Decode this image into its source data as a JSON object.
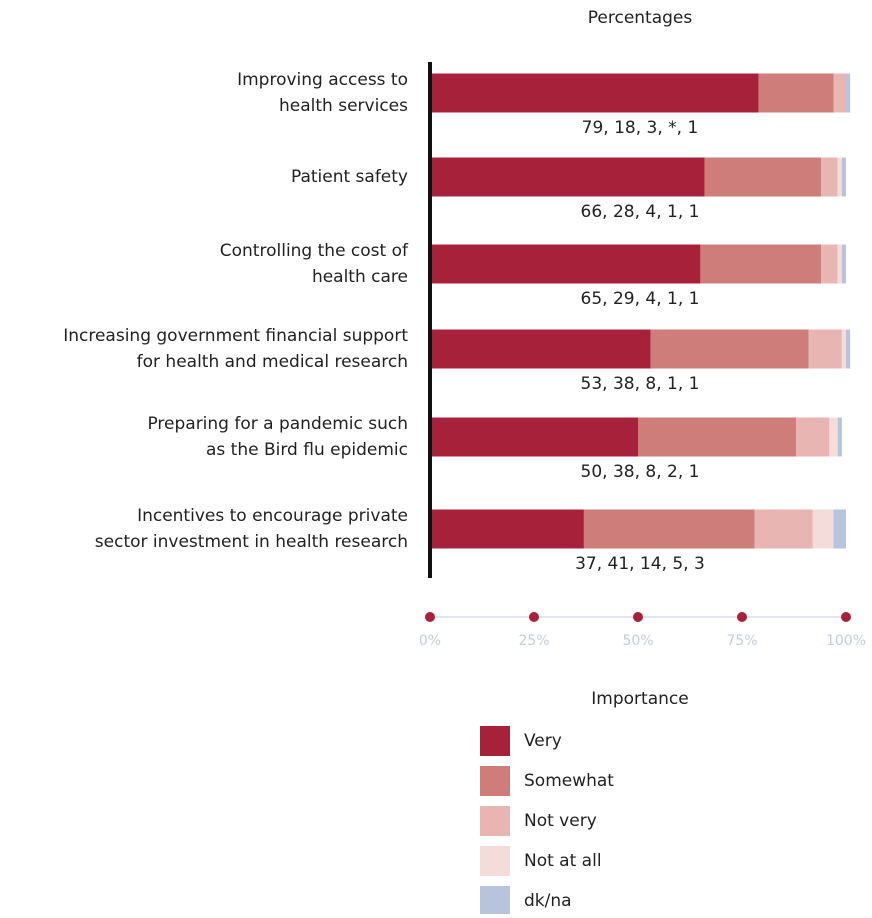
{
  "chart_data": {
    "type": "stacked-bar-horizontal",
    "title": "Percentages",
    "categories": [
      [
        "Improving access to",
        "health services"
      ],
      [
        "Patient safety"
      ],
      [
        "Controlling the cost of",
        "health care"
      ],
      [
        "Increasing government financial support",
        "for health and medical research"
      ],
      [
        "Preparing for a pandemic such",
        "as the Bird flu epidemic"
      ],
      [
        "Incentives to encourage private",
        "sector investment in health research"
      ]
    ],
    "row_labels": [
      "79, 18, 3, *, 1",
      "66, 28, 4, 1, 1",
      "65, 29, 4, 1, 1",
      "53, 38, 8, 1, 1",
      "50, 38, 8, 2, 1",
      "37, 41, 14, 5, 3"
    ],
    "series": [
      {
        "name": "Very",
        "color": "#a8213a",
        "values": [
          79,
          66,
          65,
          53,
          50,
          37
        ]
      },
      {
        "name": "Somewhat",
        "color": "#cf7d7b",
        "values": [
          18,
          28,
          29,
          38,
          38,
          41
        ]
      },
      {
        "name": "Not very",
        "color": "#e8b5b3",
        "values": [
          3,
          4,
          4,
          8,
          8,
          14
        ]
      },
      {
        "name": "Not at all",
        "color": "#f4dcdb",
        "values": [
          null,
          1,
          1,
          1,
          2,
          5
        ]
      },
      {
        "name": "dk/na",
        "color": "#b8c4dc",
        "values": [
          1,
          1,
          1,
          1,
          1,
          3
        ]
      }
    ],
    "xlim": [
      0,
      100
    ],
    "xticks": [
      {
        "value": 0,
        "label": "0%"
      },
      {
        "value": 25,
        "label": "25%"
      },
      {
        "value": 50,
        "label": "50%"
      },
      {
        "value": 75,
        "label": "75%"
      },
      {
        "value": 100,
        "label": "100%"
      }
    ],
    "legend_title": "Importance"
  }
}
